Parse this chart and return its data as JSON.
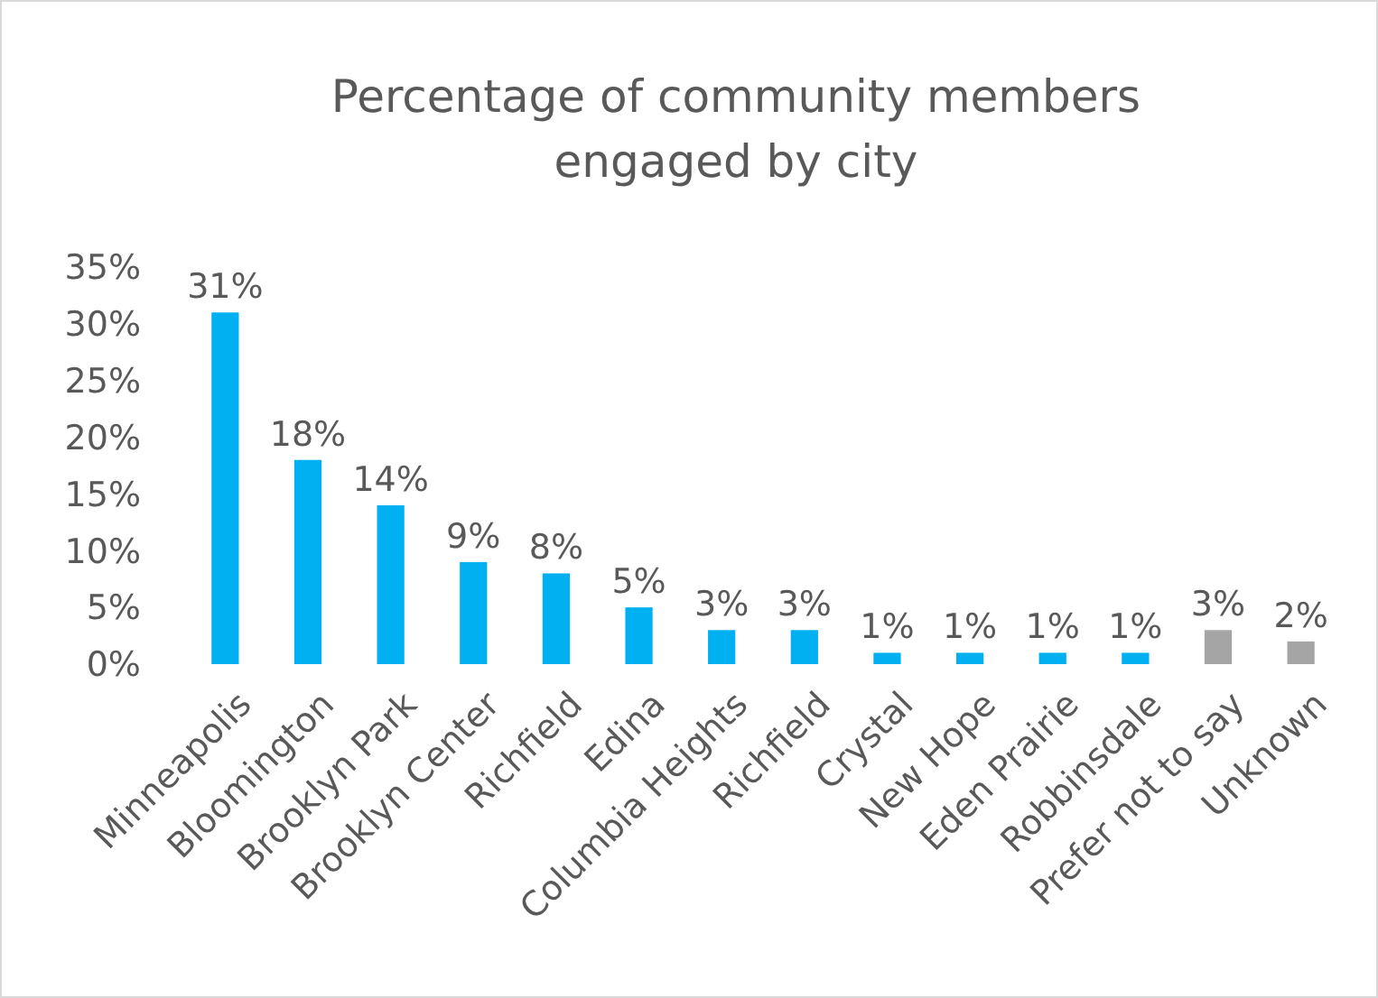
{
  "chart_data": {
    "type": "bar",
    "title": "Percentage of community members engaged by city",
    "categories": [
      "Minneapolis",
      "Bloomington",
      "Brooklyn Park",
      "Brooklyn Center",
      "Richfield",
      "Edina",
      "Columbia Heights",
      "Richfield",
      "Crystal",
      "New Hope",
      "Eden Prairie",
      "Robbinsdale",
      "Prefer not to say",
      "Unknown"
    ],
    "values": [
      31,
      18,
      14,
      9,
      8,
      5,
      3,
      3,
      1,
      1,
      1,
      1,
      3,
      2
    ],
    "colors": [
      "#00b0f0",
      "#00b0f0",
      "#00b0f0",
      "#00b0f0",
      "#00b0f0",
      "#00b0f0",
      "#00b0f0",
      "#00b0f0",
      "#00b0f0",
      "#00b0f0",
      "#00b0f0",
      "#00b0f0",
      "#a5a5a5",
      "#a5a5a5"
    ],
    "value_labels": [
      "31%",
      "18%",
      "14%",
      "9%",
      "8%",
      "5%",
      "3%",
      "3%",
      "1%",
      "1%",
      "1%",
      "1%",
      "3%",
      "2%"
    ],
    "ylim": [
      0,
      35
    ],
    "yticks": [
      {
        "value": 0,
        "label": "0%"
      },
      {
        "value": 5,
        "label": "5%"
      },
      {
        "value": 10,
        "label": "10%"
      },
      {
        "value": 15,
        "label": "15%"
      },
      {
        "value": 20,
        "label": "20%"
      },
      {
        "value": 25,
        "label": "25%"
      },
      {
        "value": 30,
        "label": "30%"
      },
      {
        "value": 35,
        "label": "35%"
      }
    ],
    "grid": false
  }
}
